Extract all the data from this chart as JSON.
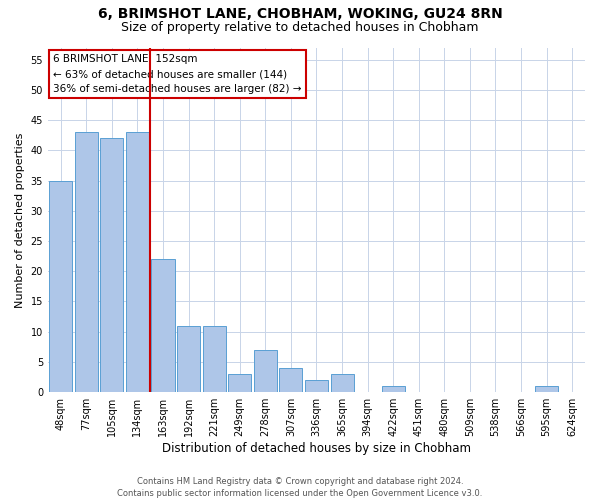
{
  "title": "6, BRIMSHOT LANE, CHOBHAM, WOKING, GU24 8RN",
  "subtitle": "Size of property relative to detached houses in Chobham",
  "xlabel": "Distribution of detached houses by size in Chobham",
  "ylabel": "Number of detached properties",
  "categories": [
    "48sqm",
    "77sqm",
    "105sqm",
    "134sqm",
    "163sqm",
    "192sqm",
    "221sqm",
    "249sqm",
    "278sqm",
    "307sqm",
    "336sqm",
    "365sqm",
    "394sqm",
    "422sqm",
    "451sqm",
    "480sqm",
    "509sqm",
    "538sqm",
    "566sqm",
    "595sqm",
    "624sqm"
  ],
  "values": [
    35,
    43,
    42,
    43,
    22,
    11,
    11,
    3,
    7,
    4,
    2,
    3,
    0,
    1,
    0,
    0,
    0,
    0,
    0,
    1,
    0
  ],
  "bar_color": "#aec6e8",
  "bar_edge_color": "#5a9fd4",
  "vline_x_index": 4,
  "vline_color": "#cc0000",
  "annotation_box_text": "6 BRIMSHOT LANE: 152sqm\n← 63% of detached houses are smaller (144)\n36% of semi-detached houses are larger (82) →",
  "annotation_box_color": "#cc0000",
  "ylim": [
    0,
    57
  ],
  "yticks": [
    0,
    5,
    10,
    15,
    20,
    25,
    30,
    35,
    40,
    45,
    50,
    55
  ],
  "footer_line1": "Contains HM Land Registry data © Crown copyright and database right 2024.",
  "footer_line2": "Contains public sector information licensed under the Open Government Licence v3.0.",
  "background_color": "#ffffff",
  "grid_color": "#c8d4e8",
  "title_fontsize": 10,
  "subtitle_fontsize": 9,
  "tick_fontsize": 7,
  "ylabel_fontsize": 8,
  "xlabel_fontsize": 8.5,
  "annotation_fontsize": 7.5,
  "footer_fontsize": 6
}
